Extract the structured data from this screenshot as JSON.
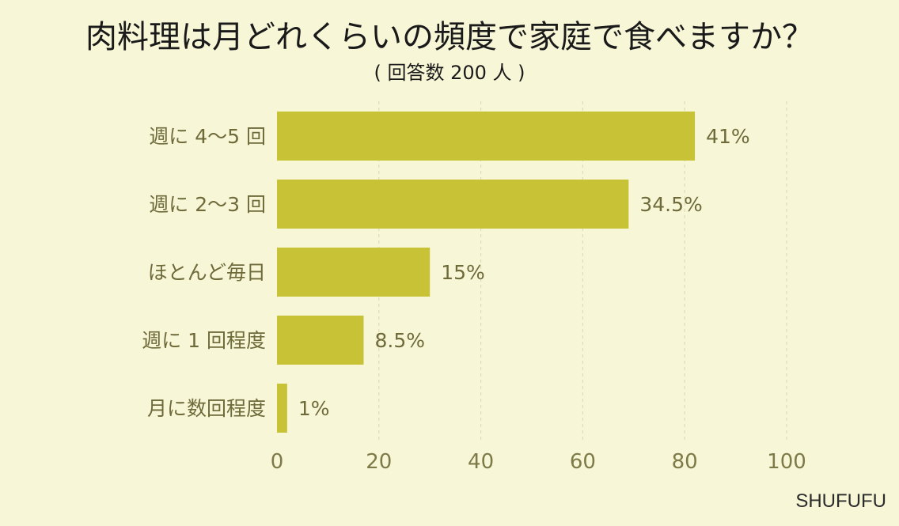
{
  "title": "肉料理は月どれくらいの頻度で家庭で食べますか？",
  "subtitle": "( 回答数 200 人 )",
  "brand": "SHUFUFU",
  "colors": {
    "background": "#f7f6d7",
    "bar": "#c8c236",
    "label": "#6e6a3a",
    "grid": "#d9d6b4"
  },
  "chart_data": {
    "type": "bar",
    "orientation": "horizontal",
    "categories": [
      "週に 4～5 回",
      "週に 2～3 回",
      "ほとんど毎日",
      "週に 1 回程度",
      "月に数回程度"
    ],
    "values": [
      82,
      69,
      30,
      17,
      2
    ],
    "value_labels": [
      "41%",
      "34.5%",
      "15%",
      "8.5%",
      "1%"
    ],
    "xlim": [
      0,
      100
    ],
    "xticks": [
      0,
      20,
      40,
      60,
      80,
      100
    ],
    "xtick_labels": [
      "0",
      "20",
      "40",
      "60",
      "80",
      "100"
    ],
    "grid": true
  }
}
